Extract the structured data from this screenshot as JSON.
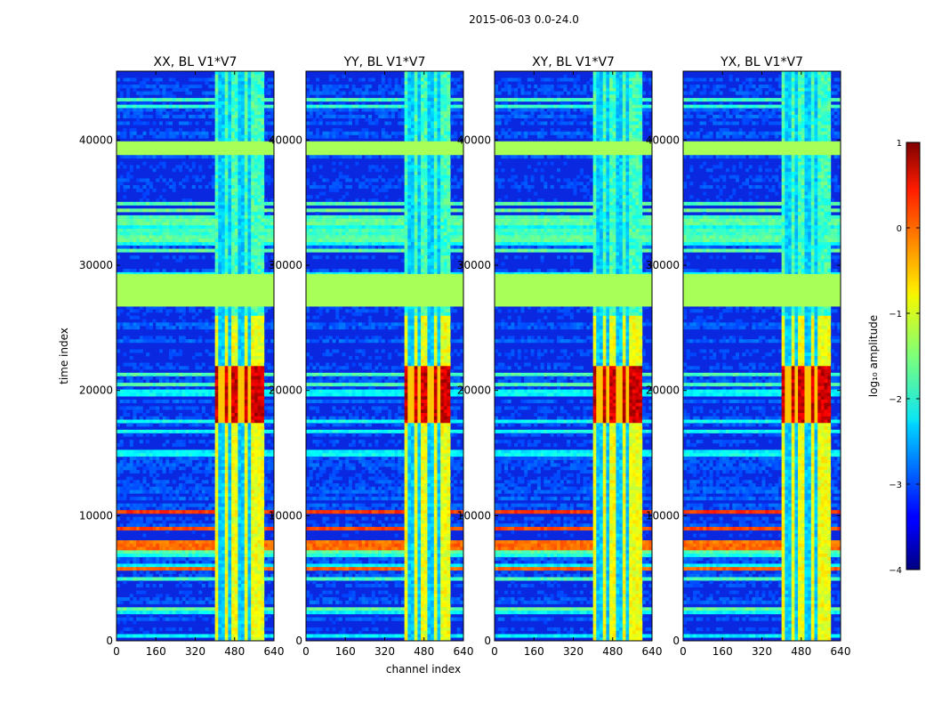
{
  "figure": {
    "suptitle": "2015-06-03 0.0-24.0",
    "xlabel": "channel index",
    "ylabel": "time index"
  },
  "chart_data": {
    "type": "heatmap",
    "title": "2015-06-03 0.0-24.0",
    "xlabel": "channel index",
    "ylabel": "time index",
    "xlim": [
      0,
      640
    ],
    "ylim": [
      0,
      45500
    ],
    "xticks": [
      0,
      160,
      320,
      480,
      640
    ],
    "yticks": [
      0,
      10000,
      20000,
      30000,
      40000
    ],
    "panels": [
      {
        "title": "XX, BL V1*V7",
        "rfi_band": [
          405,
          600
        ]
      },
      {
        "title": "YY, BL V1*V7",
        "rfi_band": [
          405,
          590
        ]
      },
      {
        "title": "XY, BL V1*V7",
        "rfi_band": [
          405,
          600
        ]
      },
      {
        "title": "YX, BL V1*V7",
        "rfi_band": [
          405,
          600
        ]
      }
    ],
    "flagged_time_ranges": [
      [
        26700,
        29300
      ],
      [
        38800,
        39900
      ]
    ],
    "flag_value": -1.3,
    "strong_interference_time_range": [
      17500,
      22000
    ],
    "colorbar": {
      "label": "log₁₀ amplitude",
      "min": -4,
      "max": 1,
      "ticks": [
        1,
        0,
        -1,
        -2,
        -3,
        -4
      ],
      "colormap": "jet"
    }
  }
}
